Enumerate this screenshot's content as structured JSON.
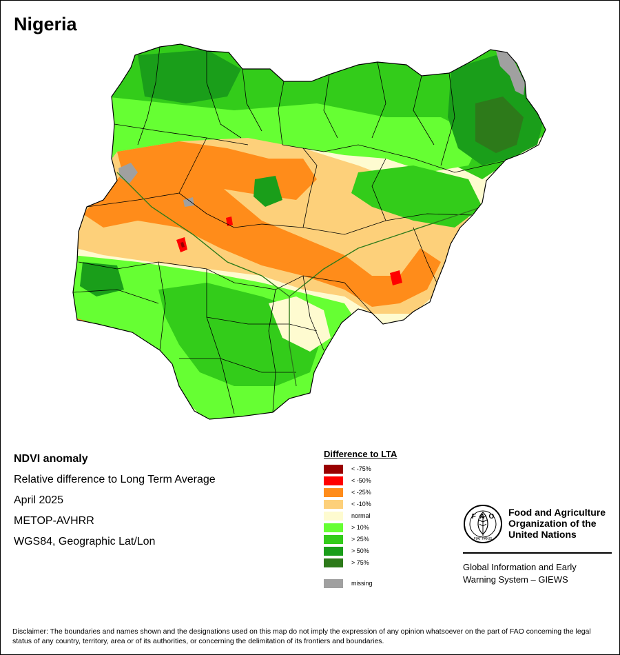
{
  "map": {
    "title": "Nigeria",
    "colors": {
      "lt_minus_75": "#990000",
      "lt_minus_50": "#ff0000",
      "lt_minus_25": "#ff8c1a",
      "lt_minus_10": "#fdd07a",
      "normal": "#fefbd0",
      "gt_10": "#66ff33",
      "gt_25": "#33cc1a",
      "gt_50": "#1a9e1a",
      "gt_75": "#2d7a1a",
      "missing": "#a0a0a0"
    }
  },
  "info": {
    "lines": [
      "NDVI anomaly",
      "Relative difference to Long Term Average",
      "April 2025",
      "METOP-AVHRR",
      "WGS84, Geographic Lat/Lon"
    ]
  },
  "legend": {
    "title": "Difference to LTA",
    "items": [
      {
        "label": "< -75%",
        "color": "#990000"
      },
      {
        "label": "< -50%",
        "color": "#ff0000"
      },
      {
        "label": "< -25%",
        "color": "#ff8c1a"
      },
      {
        "label": "< -10%",
        "color": "#fdd07a"
      },
      {
        "label": "normal",
        "color": "#fefbd0"
      },
      {
        "label": "> 10%",
        "color": "#66ff33"
      },
      {
        "label": "> 25%",
        "color": "#33cc1a"
      },
      {
        "label": "> 50%",
        "color": "#1a9e1a"
      },
      {
        "label": "> 75%",
        "color": "#2d7a1a"
      }
    ],
    "missing": {
      "label": "missing",
      "color": "#a0a0a0"
    }
  },
  "fao": {
    "logo_letters": "FAO",
    "logo_motto": "FIAT PANIS",
    "name": "Food and Agriculture Organization of the United Nations",
    "giews": "Global Information and Early Warning System – GIEWS"
  },
  "disclaimer": "Disclaimer: The boundaries and names shown and the designations used on this map do not imply the expression of any opinion whatsoever on the part of FAO concerning the legal status of any country, territory, area or of its authorities, or concerning the delimitation of its frontiers and boundaries."
}
